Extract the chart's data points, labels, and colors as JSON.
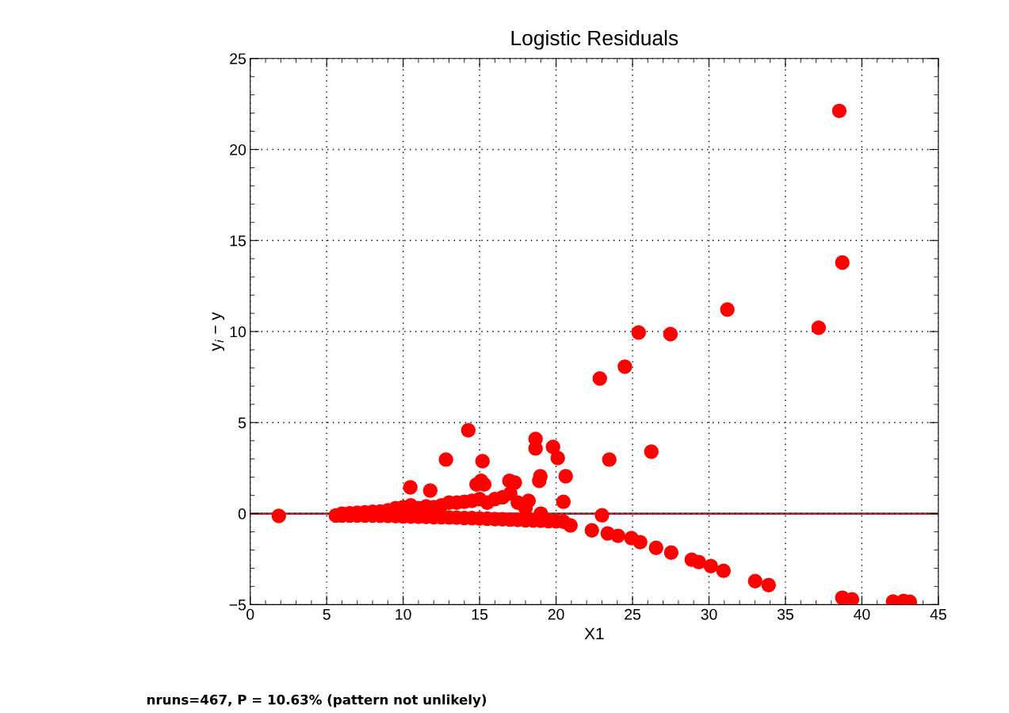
{
  "chart_data": {
    "type": "scatter",
    "title": "Logistic Residuals",
    "xlabel": "X1",
    "ylabel": "y$_{i}$ − y",
    "annotations": [
      "nruns=467, P = 10.63% (pattern not unlikely)"
    ],
    "series": [
      {
        "color": "#ff0000",
        "x": [
          1.87,
          14.26,
          12.8,
          15.19,
          10.47,
          11.77,
          15.1,
          15.3,
          14.8,
          16.95,
          17.3,
          18.2,
          18.66,
          18.66,
          18.97,
          18.9,
          19.8,
          20.11,
          20.63,
          20.48,
          23.0,
          22.86,
          24.5,
          25.4,
          27.48,
          31.2,
          23.48,
          26.23,
          37.17,
          38.52,
          38.72,
          20.48,
          20.94,
          22.34,
          23.38,
          24.05,
          24.93,
          25.5,
          26.54,
          27.53,
          28.87,
          29.34,
          30.12,
          30.95,
          33.02,
          33.9,
          38.72,
          39.35,
          42.04,
          42.72,
          43.13,
          5.6,
          6.0,
          6.5,
          7.0,
          7.5,
          8.0,
          8.5,
          9.0,
          9.5,
          10.0,
          10.5,
          11.0,
          11.5,
          12.0,
          12.5,
          13.0,
          13.5,
          14.0,
          14.5,
          15.0,
          15.5,
          16.0,
          16.5,
          17.0,
          17.5,
          18.0,
          18.5,
          19.0,
          19.5,
          20.0,
          6.0,
          6.5,
          7.0,
          7.5,
          8.0,
          8.5,
          9.0,
          9.5,
          10.0,
          10.5,
          11.0,
          11.5,
          12.0,
          12.5,
          13.0,
          13.5,
          14.0,
          14.5,
          15.0,
          15.5,
          16.0,
          16.5,
          17.0,
          17.5,
          18.0,
          19.0
        ],
        "values": [
          -0.13,
          4.58,
          2.97,
          2.88,
          1.44,
          1.27,
          1.8,
          1.6,
          1.6,
          1.8,
          1.7,
          0.7,
          4.1,
          3.58,
          2.05,
          1.8,
          3.66,
          3.05,
          2.05,
          0.65,
          -0.09,
          7.42,
          8.07,
          9.95,
          9.86,
          11.21,
          2.97,
          3.4,
          10.21,
          22.12,
          13.79,
          -0.44,
          -0.65,
          -0.92,
          -1.09,
          -1.22,
          -1.35,
          -1.57,
          -1.88,
          -2.14,
          -2.53,
          -2.66,
          -2.88,
          -3.14,
          -3.71,
          -3.93,
          -4.62,
          -4.71,
          -4.83,
          -4.8,
          -4.84,
          -0.1,
          -0.1,
          -0.1,
          -0.1,
          -0.11,
          -0.11,
          -0.12,
          -0.13,
          -0.14,
          -0.15,
          -0.16,
          -0.17,
          -0.18,
          -0.19,
          -0.2,
          -0.21,
          -0.22,
          -0.24,
          -0.25,
          -0.27,
          -0.28,
          -0.3,
          -0.31,
          -0.33,
          -0.35,
          -0.37,
          -0.38,
          -0.39,
          -0.41,
          -0.42,
          0.0,
          0.02,
          0.05,
          0.07,
          0.1,
          0.12,
          0.18,
          0.3,
          0.35,
          0.45,
          0.3,
          0.4,
          0.35,
          0.45,
          0.6,
          0.6,
          0.65,
          0.7,
          0.8,
          0.6,
          0.8,
          0.9,
          1.1,
          0.6,
          0.3,
          0.0
        ]
      }
    ],
    "marker": "circle",
    "xlim": [
      0,
      45
    ],
    "xticks": [
      0,
      5,
      10,
      15,
      20,
      25,
      30,
      35,
      40,
      45
    ],
    "ylim": [
      -5,
      25
    ],
    "yticks": [
      {
        "value": -5,
        "label": "−5"
      },
      0,
      5,
      10,
      15,
      20,
      25
    ],
    "ref_lines": [
      {
        "axis": "y",
        "value": 0,
        "color": "#800000"
      }
    ],
    "grid": true
  }
}
